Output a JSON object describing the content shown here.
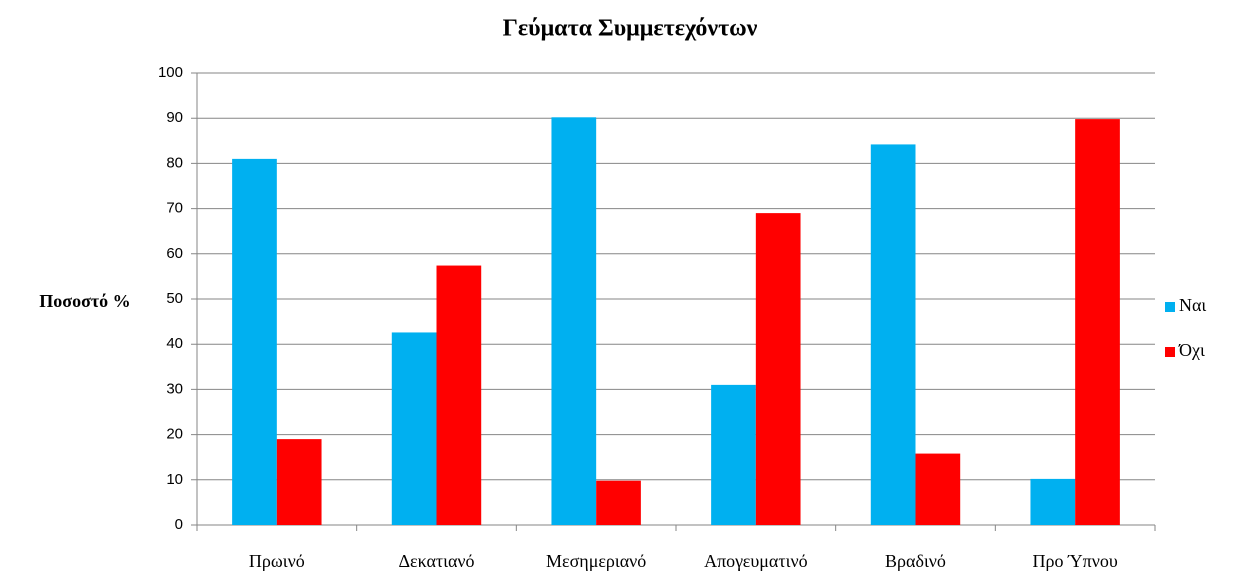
{
  "chart_data": {
    "type": "bar",
    "title": "Γεύματα Συμμετεχόντων",
    "y_label": "Ποσοστό %",
    "categories": [
      "Πρωινό",
      "Δεκατιανό",
      "Μεσημεριανό",
      "Απογευματινό",
      "Βραδινό",
      "Προ Ύπνου"
    ],
    "series": [
      {
        "name": "Ναι",
        "color": "#00b0f0",
        "values": [
          81,
          42.6,
          90.2,
          31,
          84.2,
          10.2
        ]
      },
      {
        "name": "Όχι",
        "color": "#ff0000",
        "values": [
          19,
          57.4,
          9.8,
          69,
          15.8,
          89.8
        ]
      }
    ],
    "ylim": [
      0,
      100
    ],
    "yticks": [
      0,
      10,
      20,
      30,
      40,
      50,
      60,
      70,
      80,
      90,
      100
    ],
    "grid": true,
    "legend": "right"
  }
}
